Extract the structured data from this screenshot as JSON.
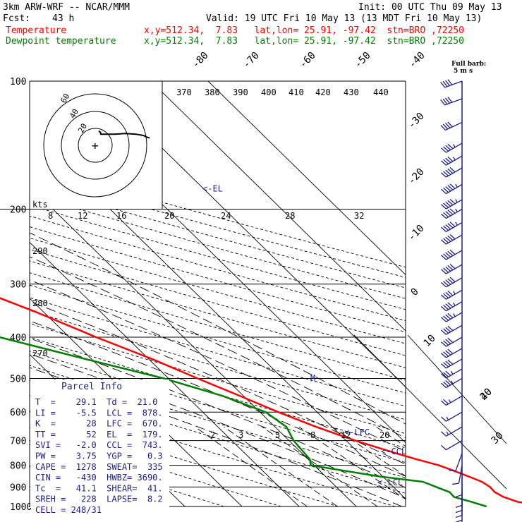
{
  "header": {
    "model": "3km ARW-WRF -- NCAR/MMM",
    "init": "Init: 00 UTC Thu 09 May 13",
    "fcst_label": "Fcst:",
    "fcst_value": "43 h",
    "valid": "Valid: 19 UTC Fri 10 May 13 (13 MDT Fri 10 May 13)",
    "temp_name": "Temperature",
    "temp_info": "x,y=512.34,  7.83   lat,lon= 25.91, -97.42  stn=BRO ,72250",
    "dew_name": "Dewpoint temperature",
    "dew_info": "x,y=512.34,  7.83   lat,lon= 25.91, -97.42  stn=BRO ,72250",
    "barb_legend_1": "Full barb:",
    "barb_legend_2": "5 m s"
  },
  "colors": {
    "temperature": "#ff0000",
    "dewpoint": "#008000",
    "parcel_box": "#1c1c8c",
    "barbs": "#1c1c8c"
  },
  "parcel_info": {
    "title": "Parcel Info",
    "rows": [
      "T  =    29.1  Td =  21.0",
      "LI =    -5.5  LCL =  878.",
      "K  =      28  LFC =  670.",
      "TT =      52  EL  =  179.",
      "SVI =   -2.0  CCL =  743.",
      "PW =    3.75  YGP =   0.3",
      "CAPE =  1278  SWEAT=  335",
      "CIN =   -430  HWBZ= 3690.",
      "Tc  =   41.1  SHEAR=  41.",
      "SREH =   228  LAPSE=  8.2",
      "CELL = 248/31"
    ]
  },
  "hodograph": {
    "units_label": "kts",
    "ring_labels": [
      "20",
      "40",
      "60"
    ],
    "points": [
      [
        0.0,
        -3.0
      ],
      [
        1.5,
        -5.0
      ],
      [
        2.0,
        -8.0
      ],
      [
        5.0,
        -8.0
      ],
      [
        15.0,
        -8.0
      ],
      [
        25.0,
        -7.0
      ],
      [
        35.0,
        -8.0
      ],
      [
        42.0,
        -10.0
      ],
      [
        46.0,
        -13.0
      ],
      [
        48.0,
        -14.0
      ]
    ]
  },
  "chart_data": {
    "type": "line",
    "title": "",
    "y_axis": "Pressure (hPa), logarithmic, inverted",
    "ylim": [
      1000,
      100
    ],
    "pressure_levels": [
      100,
      200,
      300,
      400,
      500,
      600,
      700,
      800,
      900,
      1000
    ],
    "isotherm_labels": [
      "-80",
      "-70",
      "-60",
      "-50",
      "-40",
      "-30",
      "-20",
      "-10",
      "0",
      "10",
      "20",
      "30",
      "40"
    ],
    "mixing_ratio_labels": [
      "2",
      "3",
      "5",
      "8",
      "12",
      "20"
    ],
    "theta_e_labels": [
      "370",
      "380",
      "390",
      "400",
      "410",
      "420",
      "430",
      "440"
    ],
    "theta_labels": [
      {
        "text": "8"
      },
      {
        "text": "12"
      },
      {
        "text": "16"
      },
      {
        "text": "20"
      },
      {
        "text": "24"
      },
      {
        "text": "28"
      },
      {
        "text": "32"
      }
    ],
    "dry_adiabat_labels": [
      "290",
      "280",
      "270"
    ],
    "series": [
      {
        "name": "Temperature",
        "points": [
          [
            1000,
            33.5
          ],
          [
            975,
            29.1
          ],
          [
            950,
            27.5
          ],
          [
            925,
            26.8
          ],
          [
            900,
            26.9
          ],
          [
            875,
            26.4
          ],
          [
            850,
            25.0
          ],
          [
            825,
            23.5
          ],
          [
            800,
            21.8
          ],
          [
            775,
            19.0
          ],
          [
            750,
            16.5
          ],
          [
            700,
            11.6
          ],
          [
            650,
            7.2
          ],
          [
            600,
            3.2
          ],
          [
            550,
            -0.6
          ],
          [
            500,
            -4.9
          ],
          [
            450,
            -9.4
          ],
          [
            400,
            -15.3
          ],
          [
            350,
            -21.2
          ],
          [
            300,
            -29.0
          ],
          [
            250,
            -38.2
          ],
          [
            200,
            -50.2
          ],
          [
            175,
            -57.9
          ],
          [
            150,
            -64.2
          ],
          [
            125,
            -68.6
          ],
          [
            110,
            -71.5
          ],
          [
            100,
            -73.4
          ]
        ]
      },
      {
        "name": "Dewpoint temperature",
        "points": [
          [
            1000,
            22.8
          ],
          [
            975,
            21.0
          ],
          [
            950,
            18.8
          ],
          [
            925,
            18.9
          ],
          [
            900,
            17.5
          ],
          [
            875,
            16.1
          ],
          [
            850,
            9.4
          ],
          [
            800,
            -0.6
          ],
          [
            775,
            0.3
          ],
          [
            700,
            0.8
          ],
          [
            650,
            2.0
          ],
          [
            600,
            1.0
          ],
          [
            550,
            -3.6
          ],
          [
            500,
            -10.8
          ],
          [
            450,
            -21.1
          ],
          [
            400,
            -32.2
          ],
          [
            375,
            -38.3
          ],
          [
            350,
            -38.3
          ],
          [
            300,
            -39.9
          ],
          [
            250,
            -45.5
          ],
          [
            200,
            -56.0
          ],
          [
            175,
            -63.3
          ],
          [
            150,
            -72.6
          ],
          [
            125,
            -77.9
          ],
          [
            110,
            -80.2
          ],
          [
            100,
            -80.9
          ]
        ]
      }
    ],
    "annotations": [
      {
        "text": "<-EL",
        "p": 179
      },
      {
        "text": "<-LFC",
        "p": 670
      },
      {
        "text": "<-CCL",
        "p": 743
      },
      {
        "text": "<-LCL",
        "p": 878
      },
      {
        "text": "M",
        "p": 500
      }
    ],
    "wind_barbs": [
      {
        "p": 100,
        "dir": 250,
        "kts": 40
      },
      {
        "p": 110,
        "dir": 250,
        "kts": 40
      },
      {
        "p": 125,
        "dir": 245,
        "kts": 40
      },
      {
        "p": 140,
        "dir": 240,
        "kts": 45
      },
      {
        "p": 150,
        "dir": 240,
        "kts": 45
      },
      {
        "p": 160,
        "dir": 240,
        "kts": 50
      },
      {
        "p": 175,
        "dir": 240,
        "kts": 55
      },
      {
        "p": 190,
        "dir": 240,
        "kts": 55
      },
      {
        "p": 200,
        "dir": 240,
        "kts": 55
      },
      {
        "p": 215,
        "dir": 240,
        "kts": 55
      },
      {
        "p": 230,
        "dir": 240,
        "kts": 50
      },
      {
        "p": 250,
        "dir": 240,
        "kts": 50
      },
      {
        "p": 270,
        "dir": 240,
        "kts": 50
      },
      {
        "p": 290,
        "dir": 240,
        "kts": 50
      },
      {
        "p": 310,
        "dir": 240,
        "kts": 45
      },
      {
        "p": 330,
        "dir": 240,
        "kts": 45
      },
      {
        "p": 350,
        "dir": 240,
        "kts": 45
      },
      {
        "p": 375,
        "dir": 240,
        "kts": 40
      },
      {
        "p": 400,
        "dir": 240,
        "kts": 40
      },
      {
        "p": 425,
        "dir": 240,
        "kts": 40
      },
      {
        "p": 450,
        "dir": 240,
        "kts": 40
      },
      {
        "p": 475,
        "dir": 240,
        "kts": 35
      },
      {
        "p": 500,
        "dir": 240,
        "kts": 35
      },
      {
        "p": 550,
        "dir": 240,
        "kts": 25
      },
      {
        "p": 600,
        "dir": 240,
        "kts": 15
      },
      {
        "p": 650,
        "dir": 240,
        "kts": 15
      },
      {
        "p": 700,
        "dir": 240,
        "kts": 10
      },
      {
        "p": 750,
        "dir": 200,
        "kts": 10
      },
      {
        "p": 800,
        "dir": 190,
        "kts": 10
      },
      {
        "p": 850,
        "dir": 180,
        "kts": 10
      },
      {
        "p": 900,
        "dir": 180,
        "kts": 10
      },
      {
        "p": 925,
        "dir": 180,
        "kts": 10
      },
      {
        "p": 950,
        "dir": 180,
        "kts": 10
      },
      {
        "p": 975,
        "dir": 180,
        "kts": 10
      },
      {
        "p": 1000,
        "dir": 180,
        "kts": 10
      }
    ]
  }
}
